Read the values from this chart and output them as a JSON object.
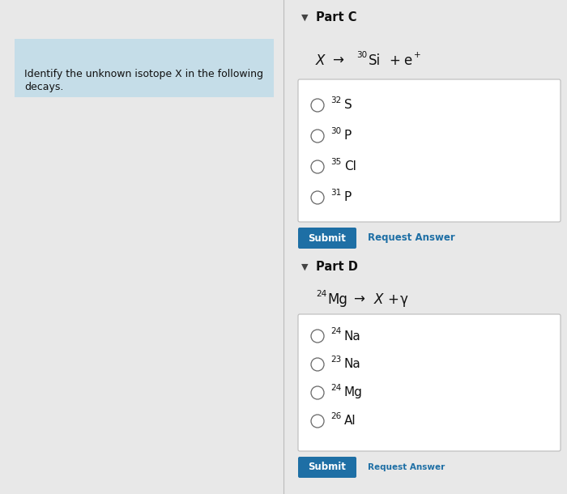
{
  "background_color": "#e8e8e8",
  "left_panel_color": "#c5dde8",
  "left_panel_text_line1": "Identify the unknown isotope X in the following",
  "left_panel_text_line2": "decays.",
  "divider_color": "#bbbbbb",
  "part_c": {
    "header": "Part C",
    "options_super": [
      "32",
      "30",
      "35",
      "31"
    ],
    "options_elem": [
      "S",
      "P",
      "Cl",
      "P"
    ],
    "submit_color": "#1e6fa5",
    "request_answer_color": "#1e6fa5"
  },
  "part_d": {
    "header": "Part D",
    "options_super": [
      "24",
      "23",
      "24",
      "26"
    ],
    "options_elem": [
      "Na",
      "Na",
      "Mg",
      "Al"
    ],
    "submit_color": "#1e6fa5",
    "request_answer_color": "#1e6fa5"
  }
}
